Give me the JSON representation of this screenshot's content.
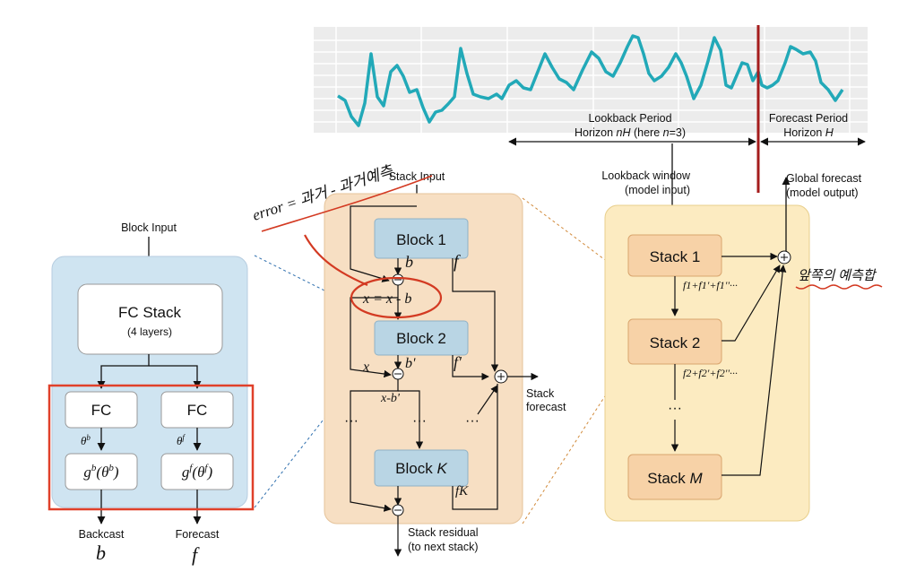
{
  "block_panel": {
    "input_label": "Block Input",
    "fc_stack_title": "FC Stack",
    "fc_stack_sub": "(4 layers)",
    "fc_left": "FC",
    "fc_right": "FC",
    "theta_b": "θ",
    "theta_b_sup": "b",
    "theta_f": "θ",
    "theta_f_sup": "f",
    "g_left": "g",
    "g_left_sup": "b",
    "g_left_arg": "(θ",
    "g_left_arg_sup": "b",
    "g_left_close": ")",
    "g_right": "g",
    "g_right_sup": "f",
    "g_right_arg": "(θ",
    "g_right_arg_sup": "f",
    "g_right_close": ")",
    "backcast_label": "Backcast",
    "forecast_label": "Forecast"
  },
  "stack_panel": {
    "input_label": "Stack Input",
    "block1": "Block 1",
    "block2": "Block 2",
    "blockK_prefix": "Block ",
    "blockK_var": "K",
    "dots": "···",
    "forecast_line1": "Stack",
    "forecast_line2": "forecast",
    "residual_line1": "Stack residual",
    "residual_line2": "(to next stack)"
  },
  "model_panel": {
    "lookback_window_line1": "Lookback window",
    "lookback_window_line2": "(model input)",
    "global_forecast_line1": "Global forecast",
    "global_forecast_line2": "(model output)",
    "stack1": "Stack 1",
    "stack2": "Stack 2",
    "stackM_prefix": "Stack ",
    "stackM_var": "M",
    "dots": "···"
  },
  "timeline": {
    "lookback_line1": "Lookback Period",
    "lookback_line2_a": "Horizon ",
    "lookback_line2_var": "nH",
    "lookback_line2_b": " (here ",
    "lookback_line2_var2": "n",
    "lookback_line2_c": "=3)",
    "forecast_line1": "Forecast Period",
    "forecast_line2_a": "Horizon ",
    "forecast_line2_var": "H"
  },
  "annotations": {
    "error_note": "error = 과거 - 과거예측",
    "residual_note": "x = x - b",
    "sum_note": "앞쪽의 예측합",
    "b_mark": "b",
    "f_mark": "f",
    "b_prime": "b'",
    "f_prime": "f'",
    "x_mark": "x",
    "x_minus_b": "x-b'",
    "f_k": "fK",
    "series1": "f1+f1'+f1''···",
    "series2": "f2+f2'+f2''···",
    "backcast_b": "b",
    "forecast_f": "f"
  },
  "colors": {
    "series": "#22a9b8",
    "forecast_line": "#a51c1c",
    "block_panel_bg": "#cfe4f1",
    "stack_panel_bg": "#f7dfc3",
    "model_panel_bg": "#fcebc1",
    "block_fill": "#b9d5e4",
    "stack_fill": "#f7d2a7",
    "highlight": "#e0402a",
    "ink_blue": "#1a3fb5",
    "ink_red": "#d33a22"
  }
}
